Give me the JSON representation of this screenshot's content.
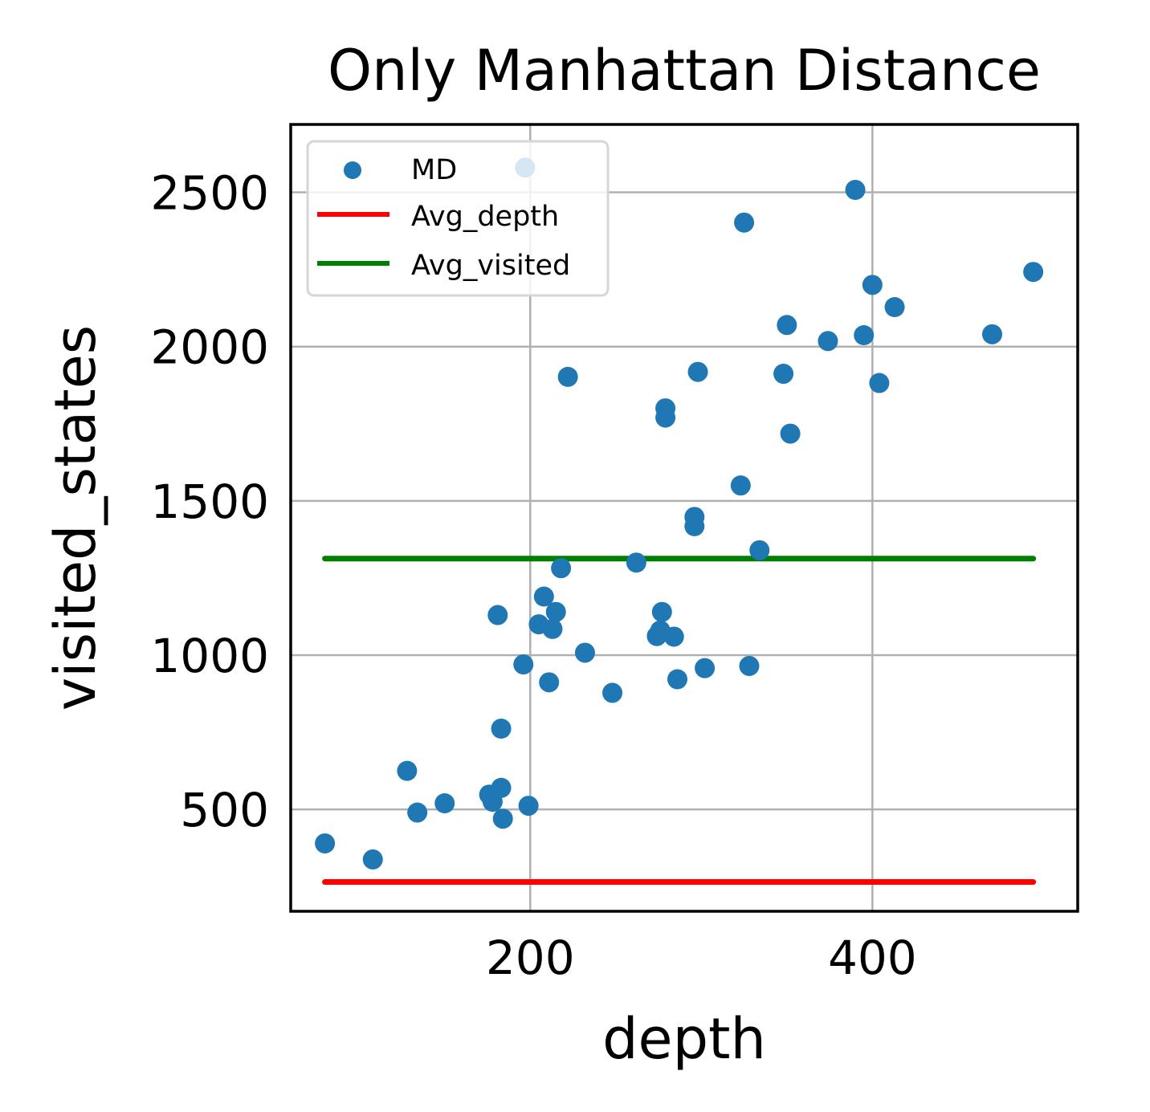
{
  "chart_data": {
    "type": "scatter",
    "title": "Only Manhattan Distance",
    "xlabel": "depth",
    "ylabel": "visited_states",
    "xlim": [
      60,
      520
    ],
    "ylim": [
      170,
      2720
    ],
    "xticks": [
      200,
      400
    ],
    "yticks": [
      500,
      1000,
      1500,
      2000,
      2500
    ],
    "grid": true,
    "legend_position": "top-left",
    "series": [
      {
        "name": "MD",
        "kind": "scatter",
        "color": "#1f77b4",
        "points": [
          [
            80,
            390
          ],
          [
            108,
            338
          ],
          [
            128,
            625
          ],
          [
            134,
            490
          ],
          [
            150,
            520
          ],
          [
            176,
            548
          ],
          [
            178,
            525
          ],
          [
            181,
            1130
          ],
          [
            183,
            570
          ],
          [
            184,
            470
          ],
          [
            183,
            762
          ],
          [
            197,
            2580
          ],
          [
            196,
            970
          ],
          [
            199,
            512
          ],
          [
            205,
            1100
          ],
          [
            208,
            1190
          ],
          [
            211,
            912
          ],
          [
            213,
            1085
          ],
          [
            215,
            1140
          ],
          [
            218,
            1282
          ],
          [
            222,
            1902
          ],
          [
            232,
            1008
          ],
          [
            248,
            878
          ],
          [
            262,
            1300
          ],
          [
            274,
            1062
          ],
          [
            276,
            1080
          ],
          [
            277,
            1140
          ],
          [
            279,
            1800
          ],
          [
            279,
            1770
          ],
          [
            284,
            1060
          ],
          [
            286,
            922
          ],
          [
            296,
            1448
          ],
          [
            296,
            1418
          ],
          [
            298,
            1918
          ],
          [
            302,
            958
          ],
          [
            323,
            1550
          ],
          [
            325,
            2402
          ],
          [
            328,
            965
          ],
          [
            334,
            1340
          ],
          [
            348,
            1912
          ],
          [
            350,
            2070
          ],
          [
            352,
            1718
          ],
          [
            374,
            2018
          ],
          [
            390,
            2508
          ],
          [
            395,
            2037
          ],
          [
            400,
            2200
          ],
          [
            404,
            1882
          ],
          [
            413,
            2128
          ],
          [
            470,
            2040
          ],
          [
            494,
            2242
          ]
        ]
      },
      {
        "name": "Avg_depth",
        "kind": "line",
        "color": "#ff0000",
        "x": [
          80,
          494
        ],
        "y": [
          265,
          265
        ]
      },
      {
        "name": "Avg_visited",
        "kind": "line",
        "color": "#008000",
        "x": [
          80,
          494
        ],
        "y": [
          1313,
          1313
        ]
      }
    ]
  }
}
